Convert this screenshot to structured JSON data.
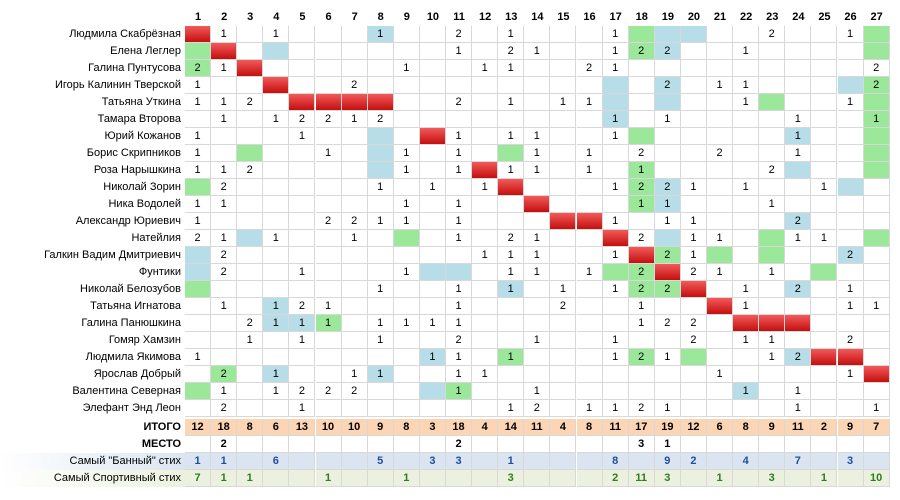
{
  "columns": [
    "1",
    "2",
    "3",
    "4",
    "5",
    "6",
    "7",
    "8",
    "9",
    "10",
    "11",
    "12",
    "13",
    "14",
    "15",
    "16",
    "17",
    "18",
    "19",
    "20",
    "21",
    "22",
    "23",
    "24",
    "25",
    "26",
    "27"
  ],
  "participants": [
    {
      "name": "Людмила Скабрёзная",
      "cells": [
        "D",
        "1",
        "",
        "1",
        "",
        "",
        "",
        "1b",
        "",
        "",
        "2",
        "",
        "1",
        "",
        "",
        "",
        "1",
        "g",
        "b",
        "b",
        "",
        "",
        "2",
        "",
        "",
        "1",
        "g"
      ]
    },
    {
      "name": "Елена Леглер",
      "cells": [
        "g",
        "D",
        "",
        "b",
        "",
        "",
        "",
        "",
        "",
        "",
        "1",
        "",
        "2",
        "1",
        "",
        "",
        "1",
        "2g",
        "2b",
        "",
        "",
        "1",
        "",
        "",
        "",
        "",
        "g"
      ]
    },
    {
      "name": "Галина Пунтусова",
      "cells": [
        "2g",
        "1",
        "D",
        "",
        "",
        "",
        "",
        "",
        "1",
        "",
        "",
        "1",
        "1",
        "",
        "",
        "2",
        "1",
        "",
        "",
        "",
        "",
        "",
        "",
        "",
        "",
        "",
        "2"
      ]
    },
    {
      "name": "Игорь Калинин Тверской",
      "cells": [
        "1",
        "",
        "",
        "D",
        "",
        "",
        "2",
        "",
        "",
        "",
        "",
        "",
        "",
        "",
        "",
        "",
        "b",
        "",
        "2b",
        "",
        "1",
        "1",
        "",
        "",
        "",
        "b",
        "2g"
      ]
    },
    {
      "name": "Татьяна Уткина",
      "cells": [
        "1",
        "1",
        "2",
        "",
        "D",
        "D",
        "D",
        "D",
        "",
        "",
        "2",
        "",
        "1",
        "",
        "1",
        "1",
        "b",
        "",
        "b",
        "",
        "",
        "1",
        "g",
        "",
        "",
        "1",
        "g"
      ]
    },
    {
      "name": "Тамара Второва",
      "cells": [
        "",
        "1",
        "",
        "1",
        "2",
        "2",
        "1",
        "2",
        "",
        "",
        "",
        "",
        "",
        "",
        "",
        "",
        "1b",
        "",
        "1",
        "",
        "",
        "",
        "",
        "1",
        "",
        "",
        "1g"
      ]
    },
    {
      "name": "Юрий Кожанов",
      "cells": [
        "1",
        "",
        "",
        "",
        "1",
        "",
        "",
        "b",
        "",
        "D",
        "1",
        "",
        "1",
        "1",
        "",
        "",
        "1",
        "g",
        "",
        "",
        "",
        "",
        "",
        "1b",
        "",
        "",
        "g"
      ]
    },
    {
      "name": "Борис Скрипников",
      "cells": [
        "1",
        "",
        "g",
        "",
        "",
        "1",
        "",
        "b",
        "1",
        "",
        "1",
        "",
        "g",
        "1",
        "",
        "1",
        "",
        "2",
        "",
        "",
        "2",
        "",
        "",
        "1",
        "",
        "",
        "g"
      ]
    },
    {
      "name": "Роза Нарышкина",
      "cells": [
        "1",
        "1",
        "2",
        "",
        "",
        "",
        "",
        "b",
        "1",
        "",
        "1",
        "D",
        "1",
        "1",
        "",
        "1",
        "",
        "1g",
        "",
        "",
        "",
        "",
        "2",
        "b",
        "",
        "",
        "g"
      ]
    },
    {
      "name": "Николай Зорин",
      "cells": [
        "g",
        "2",
        "",
        "",
        "",
        "",
        "",
        "1",
        "",
        "1",
        "",
        "1",
        "D",
        "",
        "",
        "",
        "1",
        "2g",
        "2b",
        "1",
        "",
        "1",
        "",
        "",
        "1",
        "b",
        ""
      ]
    },
    {
      "name": "Ника Водолей",
      "cells": [
        "1",
        "1",
        "",
        "",
        "",
        "",
        "",
        "",
        "1",
        "",
        "1",
        "",
        "",
        "D",
        "",
        "",
        "",
        "1g",
        "1b",
        "",
        "",
        "",
        "1",
        "",
        "",
        "",
        ""
      ]
    },
    {
      "name": "Александр Юриевич",
      "cells": [
        "1",
        "",
        "",
        "",
        "",
        "2",
        "2",
        "1",
        "1",
        "",
        "1",
        "",
        "",
        "",
        "D",
        "D",
        "1",
        "",
        "1",
        "1",
        "",
        "",
        "",
        "2b",
        "",
        "",
        ""
      ]
    },
    {
      "name": "Натейлия",
      "cells": [
        "2",
        "1",
        "b",
        "1",
        "",
        "",
        "1",
        "",
        "g",
        "",
        "1",
        "",
        "2",
        "1",
        "",
        "",
        "D",
        "2",
        "b",
        "1",
        "1",
        "",
        "g",
        "1",
        "1",
        "",
        "g"
      ]
    },
    {
      "name": "Галкин Вадим Дмитриевич",
      "cells": [
        "b",
        "2",
        "",
        "",
        "",
        "",
        "",
        "",
        "",
        "",
        "",
        "1",
        "1",
        "1",
        "",
        "",
        "1",
        "D",
        "2g",
        "1",
        "g",
        "",
        "g",
        "",
        "",
        "2b",
        ""
      ]
    },
    {
      "name": "Фунтики",
      "cells": [
        "b",
        "2",
        "",
        "",
        "1",
        "",
        "",
        "",
        "1",
        "b",
        "b",
        "",
        "1",
        "1",
        "",
        "1",
        "g",
        "2g",
        "D",
        "2",
        "1",
        "",
        "1",
        "",
        "g",
        "",
        ""
      ]
    },
    {
      "name": "Николай Белозубов",
      "cells": [
        "g",
        "",
        "",
        "",
        "",
        "",
        "",
        "1",
        "",
        "",
        "1",
        "",
        "1b",
        "",
        "1",
        "",
        "1",
        "2g",
        "2g",
        "D",
        "",
        "1",
        "",
        "2b",
        "",
        "1",
        ""
      ]
    },
    {
      "name": "Татьяна Игнатова",
      "cells": [
        "",
        "1",
        "",
        "1b",
        "2",
        "1",
        "",
        "",
        "",
        "",
        "1",
        "",
        "",
        "",
        "2",
        "",
        "",
        "1",
        "",
        "",
        "D",
        "1",
        "",
        "",
        "",
        "1",
        "1"
      ]
    },
    {
      "name": "Галина Панюшкина",
      "cells": [
        "",
        "",
        "2",
        "1b",
        "1b",
        "1g",
        "",
        "1",
        "1",
        "1",
        "1",
        "",
        "",
        "",
        "",
        "",
        "",
        "1",
        "2",
        "2",
        "",
        "D",
        "D",
        "D",
        "",
        "",
        ""
      ]
    },
    {
      "name": "Гомяр Хамзин",
      "cells": [
        "",
        "",
        "1",
        "",
        "1",
        "",
        "",
        "1",
        "",
        "",
        "2",
        "",
        "",
        "1",
        "",
        "",
        "1",
        "",
        "",
        "2",
        "",
        "1",
        "1",
        "",
        "",
        "2",
        ""
      ]
    },
    {
      "name": "Людмила Якимова",
      "cells": [
        "1",
        "",
        "",
        "",
        "",
        "",
        "",
        "",
        "",
        "1b",
        "1",
        "",
        "1g",
        "",
        "",
        "",
        "1",
        "2g",
        "1",
        "g",
        "",
        "",
        "1",
        "2b",
        "D",
        "D",
        ""
      ]
    },
    {
      "name": "Ярослав Добрый",
      "cells": [
        "",
        "2g",
        "",
        "1b",
        "",
        "",
        "1",
        "1b",
        "",
        "",
        "1",
        "1",
        "",
        "",
        "",
        "",
        "",
        "",
        "",
        "",
        "1",
        "",
        "",
        "",
        "",
        "1",
        "D"
      ]
    },
    {
      "name": "Валентина Северная",
      "cells": [
        "g",
        "1",
        "",
        "1",
        "2",
        "2",
        "2",
        "",
        "",
        "b",
        "1g",
        "",
        "",
        "1",
        "",
        "",
        "",
        "",
        "",
        "",
        "",
        "1b",
        "",
        "1",
        "",
        "",
        ""
      ]
    },
    {
      "name": "Элефант Энд Леон",
      "cells": [
        "",
        "2",
        "",
        "",
        "1",
        "",
        "",
        "",
        "",
        "",
        "",
        "",
        "1",
        "2",
        "",
        "1",
        "1",
        "2",
        "1",
        "",
        "",
        "",
        "",
        "1",
        "",
        "",
        "1"
      ]
    }
  ],
  "itogo": {
    "label": "ИТОГО",
    "values": [
      "12",
      "18",
      "8",
      "6",
      "13",
      "10",
      "10",
      "9",
      "8",
      "3",
      "18",
      "4",
      "14",
      "11",
      "4",
      "8",
      "11",
      "17",
      "19",
      "12",
      "6",
      "8",
      "9",
      "11",
      "2",
      "9",
      "7"
    ]
  },
  "mesto": {
    "label": "МЕСТО",
    "values": [
      "",
      "2",
      "",
      "",
      "",
      "",
      "",
      "",
      "",
      "",
      "2",
      "",
      "",
      "",
      "",
      "",
      "",
      "3",
      "1",
      "",
      "",
      "",
      "",
      "",
      "",
      "",
      ""
    ]
  },
  "banny": {
    "label": "Самый \"Банный\" стих",
    "values": [
      "1",
      "1",
      "",
      "6",
      "",
      "",
      "",
      "5",
      "",
      "3",
      "3",
      "",
      "1",
      "",
      "",
      "",
      "8",
      "",
      "9",
      "2",
      "",
      "4",
      "",
      "7",
      "",
      "3",
      ""
    ]
  },
  "sport": {
    "label": "Самый Спортивный стих",
    "values": [
      "7",
      "1",
      "1",
      "",
      "",
      "1",
      "",
      "",
      "1",
      "",
      "",
      "",
      "3",
      "",
      "",
      "",
      "2",
      "11",
      "3",
      "",
      "1",
      "",
      "3",
      "",
      "1",
      "",
      "10"
    ]
  }
}
